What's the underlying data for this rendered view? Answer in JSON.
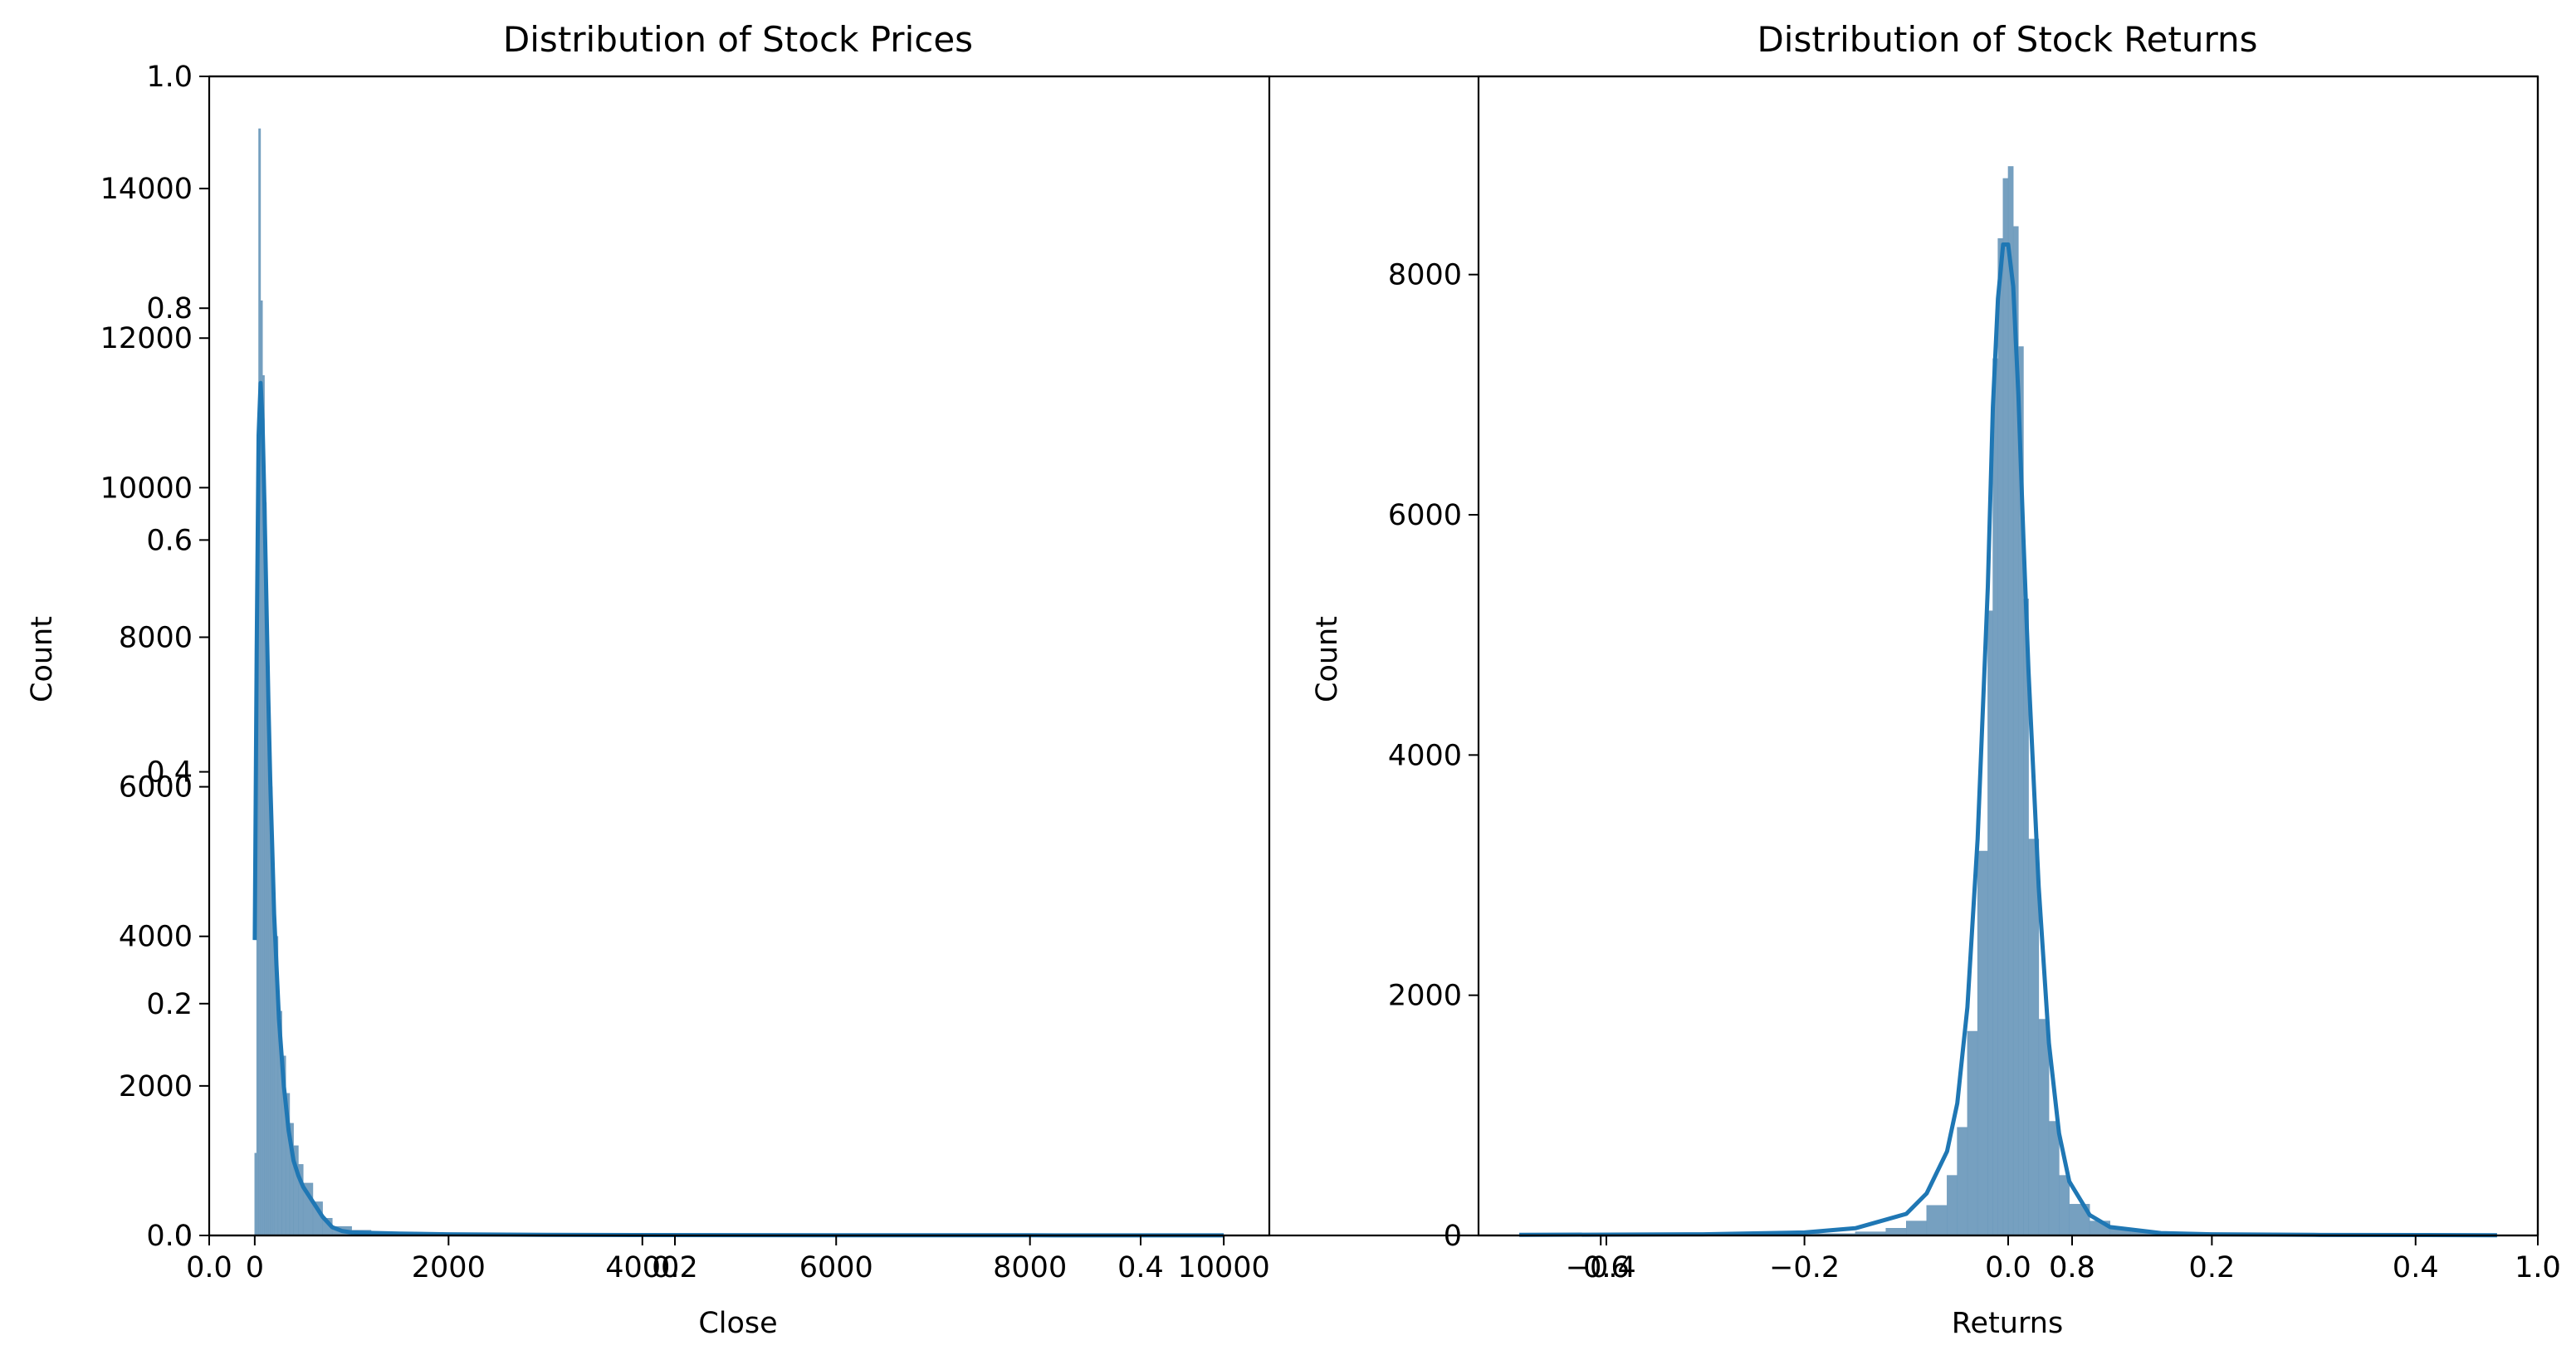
{
  "chart_data": [
    {
      "type": "bar",
      "title": "Distribution of Stock Prices",
      "xlabel": "Close",
      "ylabel": "Count",
      "xlim": [
        -470,
        10470
      ],
      "ylim": [
        0,
        15500
      ],
      "xticks": [
        0,
        2000,
        4000,
        6000,
        8000,
        10000
      ],
      "xtick_labels": [
        "0",
        "2000",
        "4000",
        "6000",
        "8000",
        "10000"
      ],
      "yticks": [
        0,
        2000,
        4000,
        6000,
        8000,
        10000,
        12000,
        14000
      ],
      "ytick_labels": [
        "0",
        "2000",
        "4000",
        "6000",
        "8000",
        "10000",
        "12000",
        "14000"
      ],
      "overlay_axis": {
        "xticks": [
          0.0,
          0.2,
          0.4,
          0.6,
          0.8,
          1.0
        ],
        "xtick_labels": [
          "0.0",
          "0.2",
          "0.4",
          "0.6",
          "0.8",
          "1.0"
        ],
        "yticks": [
          0.0,
          0.2,
          0.4,
          0.6,
          0.8,
          1.0
        ],
        "ytick_labels": [
          "0.0",
          "0.2",
          "0.4",
          "0.6",
          "0.8",
          "1.0"
        ]
      },
      "histogram": {
        "bins": [
          0,
          20,
          40,
          60,
          80,
          100,
          120,
          140,
          160,
          180,
          200,
          240,
          280,
          320,
          360,
          400,
          450,
          500,
          600,
          700,
          800,
          1000,
          1200,
          1600,
          2000,
          3000,
          4000,
          6000,
          8000,
          10000
        ],
        "counts": [
          1100,
          9000,
          14800,
          12500,
          11500,
          9800,
          8200,
          7000,
          6000,
          5000,
          4000,
          3000,
          2400,
          1900,
          1500,
          1200,
          950,
          700,
          450,
          230,
          120,
          70,
          45,
          30,
          18,
          10,
          6,
          4,
          2
        ]
      },
      "kde": {
        "x": [
          0,
          20,
          40,
          60,
          80,
          100,
          120,
          140,
          160,
          180,
          200,
          250,
          300,
          350,
          400,
          450,
          500,
          600,
          700,
          800,
          900,
          1000,
          1500,
          2000,
          3000,
          4000,
          6000,
          8000,
          10000
        ],
        "y": [
          3950,
          7800,
          10700,
          11400,
          10900,
          9800,
          8500,
          7200,
          6100,
          5200,
          4300,
          2900,
          2000,
          1400,
          1000,
          800,
          650,
          450,
          250,
          110,
          60,
          40,
          25,
          15,
          8,
          5,
          3,
          2,
          1
        ]
      },
      "bar_color": "#6f9bbd",
      "line_color": "#1f77b4"
    },
    {
      "type": "bar",
      "title": "Distribution of Stock Returns",
      "xlabel": "Returns",
      "ylabel": "Count",
      "xlim": [
        -0.52,
        0.52
      ],
      "ylim": [
        0,
        9650
      ],
      "xticks": [
        -0.4,
        -0.2,
        0.0,
        0.2,
        0.4
      ],
      "xtick_labels": [
        "−0.4",
        "−0.2",
        "0.0",
        "0.2",
        "0.4"
      ],
      "yticks": [
        0,
        2000,
        4000,
        6000,
        8000
      ],
      "ytick_labels": [
        "0",
        "2000",
        "4000",
        "6000",
        "8000"
      ],
      "overlay_axis": {
        "xticks": [
          0.6,
          0.8,
          1.0
        ],
        "xtick_labels": [
          "0.6",
          "0.8",
          "1.0"
        ]
      },
      "histogram": {
        "bins": [
          -0.48,
          -0.3,
          -0.2,
          -0.15,
          -0.12,
          -0.1,
          -0.08,
          -0.06,
          -0.05,
          -0.04,
          -0.03,
          -0.02,
          -0.015,
          -0.01,
          -0.005,
          0.0,
          0.005,
          0.01,
          0.015,
          0.02,
          0.03,
          0.04,
          0.05,
          0.06,
          0.08,
          0.1,
          0.12,
          0.15,
          0.2,
          0.3,
          0.48
        ],
        "counts": [
          2,
          6,
          15,
          30,
          60,
          120,
          250,
          500,
          900,
          1700,
          3200,
          5200,
          7300,
          8300,
          8800,
          8900,
          8400,
          7400,
          5300,
          3300,
          1800,
          950,
          500,
          260,
          120,
          60,
          30,
          15,
          6,
          2
        ]
      },
      "kde": {
        "x": [
          -0.48,
          -0.3,
          -0.2,
          -0.15,
          -0.1,
          -0.08,
          -0.06,
          -0.05,
          -0.04,
          -0.03,
          -0.02,
          -0.015,
          -0.01,
          -0.005,
          0.0,
          0.005,
          0.01,
          0.015,
          0.02,
          0.03,
          0.04,
          0.05,
          0.06,
          0.08,
          0.1,
          0.15,
          0.2,
          0.3,
          0.48
        ],
        "y": [
          5,
          10,
          25,
          60,
          180,
          350,
          700,
          1100,
          1900,
          3300,
          5400,
          6900,
          7800,
          8250,
          8250,
          7900,
          7000,
          5800,
          4700,
          2900,
          1600,
          850,
          450,
          170,
          70,
          20,
          10,
          5,
          2
        ]
      },
      "bar_color": "#6f9bbd",
      "line_color": "#1f77b4"
    }
  ]
}
